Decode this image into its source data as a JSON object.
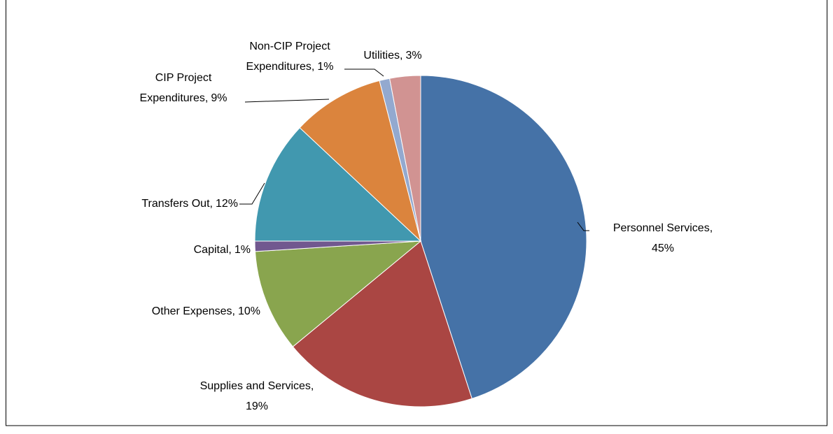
{
  "chart_data": {
    "type": "pie",
    "categories": [
      "Personnel Services,",
      "Supplies and Services,",
      "Other Expenses,",
      "Capital,",
      "Transfers Out,",
      "CIP Project Expenditures,",
      "Non-CIP Project Expenditures,",
      "Utilities,"
    ],
    "values": [
      45,
      19,
      10,
      1,
      12,
      9,
      1,
      3
    ],
    "value_labels": [
      "45%",
      "19%",
      "10%",
      "1%",
      "12%",
      "9%",
      "1%",
      "3%"
    ],
    "colors": [
      "#4572a7",
      "#aa4643",
      "#89a54e",
      "#71588f",
      "#4198af",
      "#db843d",
      "#93a9cf",
      "#d19392"
    ]
  }
}
